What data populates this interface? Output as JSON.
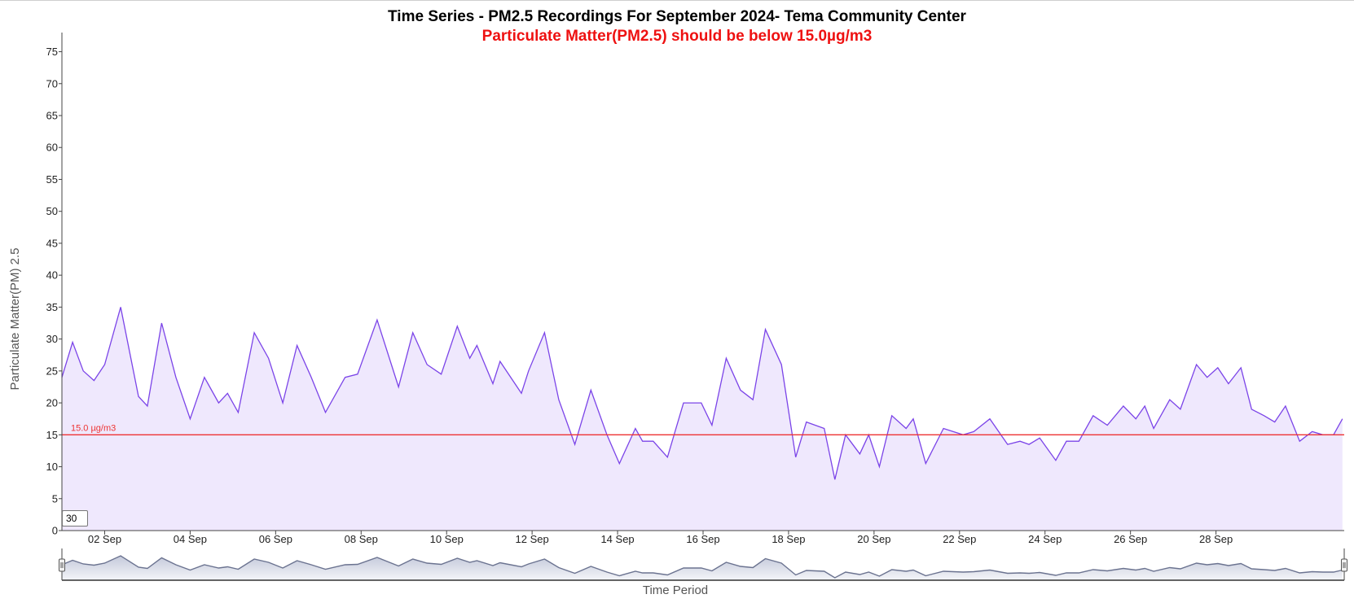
{
  "chart_data": {
    "type": "area",
    "title": "Time Series - PM2.5 Recordings For September 2024- Tema Community Center",
    "subtitle": "Particulate Matter(PM2.5) should be below 15.0µg/m3",
    "ylabel": "Particulate Matter(PM) 2.5",
    "xlabel": "Time Period",
    "ylim": [
      0,
      78
    ],
    "xlim": [
      "2024-09-01",
      "2024-09-30"
    ],
    "yticks": [
      0,
      5,
      10,
      15,
      20,
      25,
      30,
      35,
      40,
      45,
      50,
      55,
      60,
      65,
      70,
      75
    ],
    "xticks": [
      "02 Sep",
      "04 Sep",
      "06 Sep",
      "08 Sep",
      "10 Sep",
      "12 Sep",
      "14 Sep",
      "16 Sep",
      "18 Sep",
      "20 Sep",
      "22 Sep",
      "24 Sep",
      "26 Sep",
      "28 Sep"
    ],
    "threshold": {
      "value": 15.0,
      "label": "15.0 µg/m3",
      "color": "#ee3333"
    },
    "series": [
      {
        "color": "#7b44e8",
        "fill": "#efe8fd",
        "points": [
          [
            "2024-09-01 00:00",
            24
          ],
          [
            "2024-09-01 06:00",
            29.5
          ],
          [
            "2024-09-01 12:00",
            25
          ],
          [
            "2024-09-01 18:00",
            23.5
          ],
          [
            "2024-09-02 00:00",
            26
          ],
          [
            "2024-09-02 09:00",
            35
          ],
          [
            "2024-09-02 19:00",
            21
          ],
          [
            "2024-09-03 00:00",
            19.5
          ],
          [
            "2024-09-03 08:00",
            32.5
          ],
          [
            "2024-09-03 16:00",
            24
          ],
          [
            "2024-09-04 00:00",
            17.5
          ],
          [
            "2024-09-04 08:00",
            24
          ],
          [
            "2024-09-04 16:00",
            20
          ],
          [
            "2024-09-04 21:00",
            21.5
          ],
          [
            "2024-09-05 03:00",
            18.5
          ],
          [
            "2024-09-05 12:00",
            31
          ],
          [
            "2024-09-05 20:00",
            27
          ],
          [
            "2024-09-06 04:00",
            20
          ],
          [
            "2024-09-06 12:00",
            29
          ],
          [
            "2024-09-06 20:00",
            24
          ],
          [
            "2024-09-07 04:00",
            18.5
          ],
          [
            "2024-09-07 15:00",
            24
          ],
          [
            "2024-09-07 22:00",
            24.5
          ],
          [
            "2024-09-08 09:00",
            33
          ],
          [
            "2024-09-08 21:00",
            22.5
          ],
          [
            "2024-09-09 05:00",
            31
          ],
          [
            "2024-09-09 13:00",
            26
          ],
          [
            "2024-09-09 21:00",
            24.5
          ],
          [
            "2024-09-10 06:00",
            32
          ],
          [
            "2024-09-10 13:00",
            27
          ],
          [
            "2024-09-10 17:00",
            29
          ],
          [
            "2024-09-11 02:00",
            23
          ],
          [
            "2024-09-11 06:00",
            26.5
          ],
          [
            "2024-09-11 18:00",
            21.5
          ],
          [
            "2024-09-11 22:00",
            25
          ],
          [
            "2024-09-12 07:00",
            31
          ],
          [
            "2024-09-12 15:00",
            20.5
          ],
          [
            "2024-09-13 00:00",
            13.5
          ],
          [
            "2024-09-13 09:00",
            22
          ],
          [
            "2024-09-13 18:00",
            15
          ],
          [
            "2024-09-14 01:00",
            10.5
          ],
          [
            "2024-09-14 10:00",
            16
          ],
          [
            "2024-09-14 14:00",
            14
          ],
          [
            "2024-09-14 20:00",
            14
          ],
          [
            "2024-09-15 04:00",
            11.5
          ],
          [
            "2024-09-15 13:00",
            20
          ],
          [
            "2024-09-15 23:00",
            20
          ],
          [
            "2024-09-16 05:00",
            16.5
          ],
          [
            "2024-09-16 13:00",
            27
          ],
          [
            "2024-09-16 21:00",
            22
          ],
          [
            "2024-09-17 04:00",
            20.5
          ],
          [
            "2024-09-17 11:00",
            31.5
          ],
          [
            "2024-09-17 20:00",
            26
          ],
          [
            "2024-09-18 04:00",
            11.5
          ],
          [
            "2024-09-18 10:00",
            17
          ],
          [
            "2024-09-18 20:00",
            16
          ],
          [
            "2024-09-19 02:00",
            8
          ],
          [
            "2024-09-19 08:00",
            15
          ],
          [
            "2024-09-19 16:00",
            12
          ],
          [
            "2024-09-19 21:00",
            15
          ],
          [
            "2024-09-20 03:00",
            10
          ],
          [
            "2024-09-20 10:00",
            18
          ],
          [
            "2024-09-20 18:00",
            16
          ],
          [
            "2024-09-20 22:00",
            17.5
          ],
          [
            "2024-09-21 05:00",
            10.5
          ],
          [
            "2024-09-21 15:00",
            16
          ],
          [
            "2024-09-22 02:00",
            15
          ],
          [
            "2024-09-22 08:00",
            15.5
          ],
          [
            "2024-09-22 17:00",
            17.5
          ],
          [
            "2024-09-23 03:00",
            13.5
          ],
          [
            "2024-09-23 10:00",
            14
          ],
          [
            "2024-09-23 15:00",
            13.5
          ],
          [
            "2024-09-23 21:00",
            14.5
          ],
          [
            "2024-09-24 06:00",
            11
          ],
          [
            "2024-09-24 12:00",
            14
          ],
          [
            "2024-09-24 19:00",
            14
          ],
          [
            "2024-09-25 03:00",
            18
          ],
          [
            "2024-09-25 11:00",
            16.5
          ],
          [
            "2024-09-25 20:00",
            19.5
          ],
          [
            "2024-09-26 03:00",
            17.5
          ],
          [
            "2024-09-26 08:00",
            19.5
          ],
          [
            "2024-09-26 13:00",
            16
          ],
          [
            "2024-09-26 22:00",
            20.5
          ],
          [
            "2024-09-27 04:00",
            19
          ],
          [
            "2024-09-27 13:00",
            26
          ],
          [
            "2024-09-27 19:00",
            24
          ],
          [
            "2024-09-28 01:00",
            25.5
          ],
          [
            "2024-09-28 07:00",
            23
          ],
          [
            "2024-09-28 14:00",
            25.5
          ],
          [
            "2024-09-28 20:00",
            19
          ],
          [
            "2024-09-29 03:00",
            18
          ],
          [
            "2024-09-29 09:00",
            17
          ],
          [
            "2024-09-29 15:00",
            19.5
          ],
          [
            "2024-09-29 23:00",
            14
          ],
          [
            "2024-09-30 06:00",
            15.5
          ],
          [
            "2024-09-30 12:00",
            15
          ],
          [
            "2024-09-30 18:00",
            15
          ],
          [
            "2024-09-30 23:00",
            17.5
          ]
        ]
      }
    ],
    "navigator": {
      "enabled": true
    }
  },
  "controls": {
    "period_value": "30"
  }
}
